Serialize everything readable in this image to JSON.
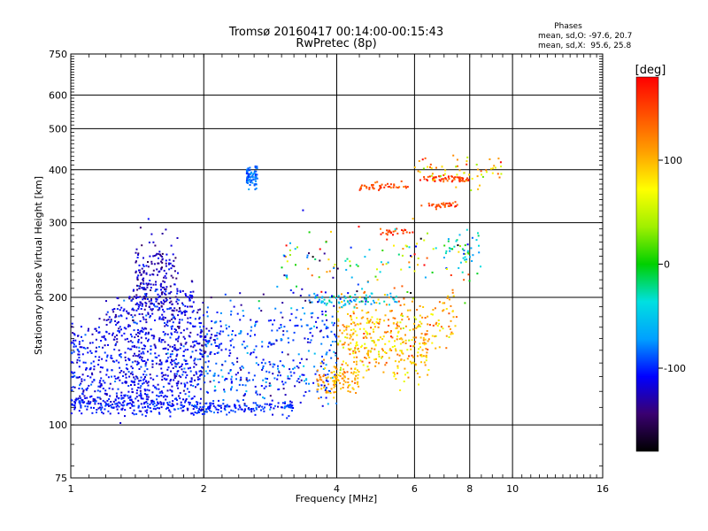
{
  "chart_data": {
    "type": "scatter",
    "title": "Tromsø 20160417 00:14:00-00:15:43",
    "subtitle": "RwPretec (8p)",
    "xlabel": "Frequency [MHz]",
    "ylabel": "Stationary phase Virtual Height [km]",
    "x_scale": "log",
    "y_scale": "log",
    "xlim": [
      1,
      16
    ],
    "ylim": [
      75,
      750
    ],
    "x_ticks": [
      1,
      2,
      4,
      6,
      8,
      10,
      16
    ],
    "x_tick_labels": [
      "1",
      "2",
      "4",
      "6",
      "8",
      "10",
      "16"
    ],
    "y_ticks": [
      75,
      100,
      200,
      300,
      400,
      500,
      600,
      750
    ],
    "y_tick_labels": [
      "75",
      "100",
      "200",
      "300",
      "400",
      "500",
      "600",
      "750"
    ],
    "grid": true,
    "stats": {
      "heading": "Phases",
      "lines": [
        "mean, sd,O: -97.6, 20.7",
        "mean, sd,X:  95.6, 25.8"
      ]
    },
    "colorbar": {
      "label": "[deg]",
      "range": [
        -180,
        180
      ],
      "ticks": [
        100,
        0,
        -100
      ],
      "tick_labels": [
        "100",
        "0",
        "-100"
      ],
      "stops": [
        "#000000",
        "#3a0070",
        "#0000ff",
        "#00a0ff",
        "#00e0e0",
        "#00d000",
        "#a0f000",
        "#ffff00",
        "#ffa000",
        "#ff5000",
        "#ff0000"
      ]
    },
    "point_groups": [
      {
        "x_range": [
          1.0,
          1.9
        ],
        "y_center": 112,
        "spread": 0.03,
        "phase": -105,
        "phase_sd": 10,
        "count": 260
      },
      {
        "x_range": [
          1.9,
          3.2
        ],
        "y_center": 110,
        "spread": 0.02,
        "phase": -100,
        "phase_sd": 10,
        "count": 160
      },
      {
        "x_range": [
          1.0,
          2.0
        ],
        "y_center": 125,
        "spread": 0.05,
        "phase": -110,
        "phase_sd": 12,
        "count": 220
      },
      {
        "x_range": [
          1.0,
          2.0
        ],
        "y_center": 140,
        "spread": 0.06,
        "phase": -108,
        "phase_sd": 12,
        "count": 220
      },
      {
        "x_range": [
          1.0,
          2.2
        ],
        "y_center": 158,
        "spread": 0.05,
        "phase": -112,
        "phase_sd": 12,
        "count": 220
      },
      {
        "x_range": [
          1.2,
          2.0
        ],
        "y_center": 180,
        "spread": 0.06,
        "phase": -115,
        "phase_sd": 15,
        "count": 180
      },
      {
        "x_range": [
          1.35,
          1.9
        ],
        "y_center": 200,
        "spread": 0.05,
        "phase": -118,
        "phase_sd": 15,
        "count": 140
      },
      {
        "x_range": [
          1.4,
          1.75
        ],
        "y_center": 235,
        "spread": 0.08,
        "phase": -125,
        "phase_sd": 15,
        "count": 130
      },
      {
        "x_range": [
          2.0,
          4.0
        ],
        "y_center": 130,
        "spread": 0.07,
        "phase": -95,
        "phase_sd": 20,
        "count": 200
      },
      {
        "x_range": [
          2.0,
          4.0
        ],
        "y_center": 165,
        "spread": 0.09,
        "phase": -95,
        "phase_sd": 20,
        "count": 200
      },
      {
        "x_range": [
          2.5,
          2.65
        ],
        "y_center": 385,
        "spread": 0.03,
        "phase": -85,
        "phase_sd": 8,
        "count": 80
      },
      {
        "x_range": [
          3.6,
          4.5
        ],
        "y_center": 128,
        "spread": 0.04,
        "phase": 105,
        "phase_sd": 18,
        "count": 110
      },
      {
        "x_range": [
          4.0,
          6.5
        ],
        "y_center": 150,
        "spread": 0.08,
        "phase": 95,
        "phase_sd": 25,
        "count": 220
      },
      {
        "x_range": [
          4.0,
          7.5
        ],
        "y_center": 175,
        "spread": 0.08,
        "phase": 100,
        "phase_sd": 25,
        "count": 200
      },
      {
        "x_range": [
          3.5,
          5.5
        ],
        "y_center": 197,
        "spread": 0.02,
        "phase": -60,
        "phase_sd": 25,
        "count": 80
      },
      {
        "x_range": [
          4.5,
          5.8
        ],
        "y_center": 365,
        "spread": 0.01,
        "phase": 150,
        "phase_sd": 15,
        "count": 45
      },
      {
        "x_range": [
          6.3,
          8.0
        ],
        "y_center": 380,
        "spread": 0.01,
        "phase": 155,
        "phase_sd": 15,
        "count": 55
      },
      {
        "x_range": [
          6.2,
          7.5
        ],
        "y_center": 330,
        "spread": 0.01,
        "phase": 150,
        "phase_sd": 15,
        "count": 35
      },
      {
        "x_range": [
          5.0,
          6.0
        ],
        "y_center": 285,
        "spread": 0.01,
        "phase": 150,
        "phase_sd": 15,
        "count": 25
      },
      {
        "x_range": [
          6.0,
          9.5
        ],
        "y_center": 400,
        "spread": 0.04,
        "phase": 90,
        "phase_sd": 40,
        "count": 60
      },
      {
        "x_range": [
          7.0,
          8.5
        ],
        "y_center": 260,
        "spread": 0.06,
        "phase": -30,
        "phase_sd": 40,
        "count": 40
      },
      {
        "x_range": [
          3.0,
          8.0
        ],
        "y_center": 240,
        "spread": 0.1,
        "phase": 0,
        "phase_sd": 90,
        "count": 120
      }
    ]
  }
}
